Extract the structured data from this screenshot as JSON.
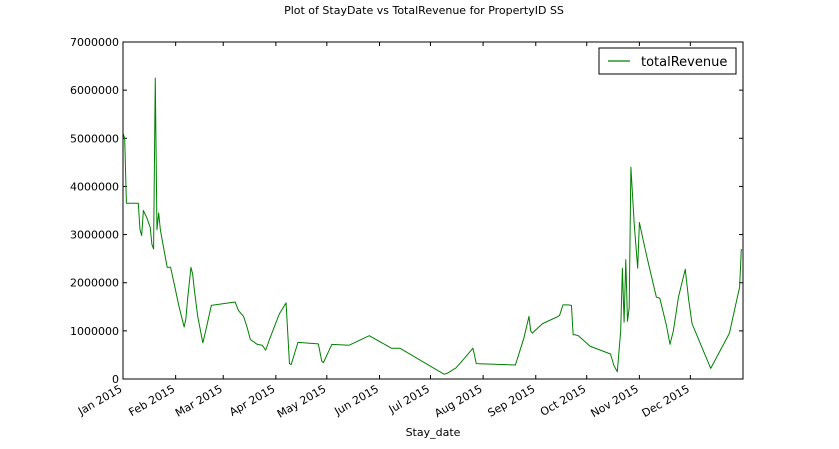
{
  "chart_data": {
    "type": "line",
    "title": "Plot of StayDate vs TotalRevenue for PropertyID SS",
    "xlabel": "Stay_date",
    "ylabel": "",
    "xlim": [
      "2015-01-01",
      "2015-12-31"
    ],
    "ylim": [
      0,
      7000000
    ],
    "grid": false,
    "legend_position": "top-right",
    "yticks": [
      {
        "value": 0,
        "label": "0"
      },
      {
        "value": 1000000,
        "label": "1000000"
      },
      {
        "value": 2000000,
        "label": "2000000"
      },
      {
        "value": 3000000,
        "label": "3000000"
      },
      {
        "value": 4000000,
        "label": "4000000"
      },
      {
        "value": 5000000,
        "label": "5000000"
      },
      {
        "value": 6000000,
        "label": "6000000"
      },
      {
        "value": 7000000,
        "label": "7000000"
      }
    ],
    "xticks": [
      {
        "value": "2015-01-01",
        "label": "Jan 2015"
      },
      {
        "value": "2015-02-01",
        "label": "Feb 2015"
      },
      {
        "value": "2015-03-01",
        "label": "Mar 2015"
      },
      {
        "value": "2015-04-01",
        "label": "Apr 2015"
      },
      {
        "value": "2015-05-01",
        "label": "May 2015"
      },
      {
        "value": "2015-06-01",
        "label": "Jun 2015"
      },
      {
        "value": "2015-07-01",
        "label": "Jul 2015"
      },
      {
        "value": "2015-08-01",
        "label": "Aug 2015"
      },
      {
        "value": "2015-09-01",
        "label": "Sep 2015"
      },
      {
        "value": "2015-10-01",
        "label": "Oct 2015"
      },
      {
        "value": "2015-11-01",
        "label": "Nov 2015"
      },
      {
        "value": "2015-12-01",
        "label": "Dec 2015"
      }
    ],
    "series": [
      {
        "name": "totalRevenue",
        "color": "#008000",
        "points": [
          [
            "2015-01-01",
            5100000
          ],
          [
            "2015-01-02",
            5000000
          ],
          [
            "2015-01-03",
            3650000
          ],
          [
            "2015-01-09",
            3650000
          ],
          [
            "2015-01-10",
            3650000
          ],
          [
            "2015-01-11",
            3100000
          ],
          [
            "2015-01-12",
            2980000
          ],
          [
            "2015-01-13",
            3500000
          ],
          [
            "2015-01-15",
            3350000
          ],
          [
            "2015-01-17",
            3150000
          ],
          [
            "2015-01-18",
            2800000
          ],
          [
            "2015-01-19",
            2700000
          ],
          [
            "2015-01-20",
            6250000
          ],
          [
            "2015-01-21",
            3100000
          ],
          [
            "2015-01-22",
            3450000
          ],
          [
            "2015-01-23",
            3100000
          ],
          [
            "2015-01-24",
            2900000
          ],
          [
            "2015-01-27",
            2320000
          ],
          [
            "2015-01-29",
            2320000
          ],
          [
            "2015-01-31",
            2000000
          ],
          [
            "2015-02-03",
            1500000
          ],
          [
            "2015-02-06",
            1080000
          ],
          [
            "2015-02-07",
            1250000
          ],
          [
            "2015-02-08",
            1650000
          ],
          [
            "2015-02-10",
            2320000
          ],
          [
            "2015-02-11",
            2180000
          ],
          [
            "2015-02-12",
            1850000
          ],
          [
            "2015-02-14",
            1300000
          ],
          [
            "2015-02-17",
            750000
          ],
          [
            "2015-02-19",
            1050000
          ],
          [
            "2015-02-22",
            1530000
          ],
          [
            "2015-03-08",
            1600000
          ],
          [
            "2015-03-10",
            1420000
          ],
          [
            "2015-03-13",
            1300000
          ],
          [
            "2015-03-15",
            1080000
          ],
          [
            "2015-03-17",
            820000
          ],
          [
            "2015-03-21",
            720000
          ],
          [
            "2015-03-24",
            700000
          ],
          [
            "2015-03-26",
            600000
          ],
          [
            "2015-03-28",
            800000
          ],
          [
            "2015-04-03",
            1350000
          ],
          [
            "2015-04-07",
            1580000
          ],
          [
            "2015-04-09",
            320000
          ],
          [
            "2015-04-10",
            300000
          ],
          [
            "2015-04-14",
            760000
          ],
          [
            "2015-04-26",
            730000
          ],
          [
            "2015-04-28",
            370000
          ],
          [
            "2015-04-29",
            340000
          ],
          [
            "2015-05-02",
            570000
          ],
          [
            "2015-05-04",
            720000
          ],
          [
            "2015-05-14",
            700000
          ],
          [
            "2015-05-26",
            900000
          ],
          [
            "2015-06-04",
            720000
          ],
          [
            "2015-06-08",
            640000
          ],
          [
            "2015-06-13",
            640000
          ],
          [
            "2015-07-09",
            100000
          ],
          [
            "2015-07-11",
            120000
          ],
          [
            "2015-07-16",
            230000
          ],
          [
            "2015-07-21",
            430000
          ],
          [
            "2015-07-26",
            640000
          ],
          [
            "2015-07-28",
            320000
          ],
          [
            "2015-08-20",
            290000
          ],
          [
            "2015-08-25",
            850000
          ],
          [
            "2015-08-28",
            1300000
          ],
          [
            "2015-08-29",
            1000000
          ],
          [
            "2015-08-30",
            950000
          ],
          [
            "2015-09-01",
            1020000
          ],
          [
            "2015-09-05",
            1150000
          ],
          [
            "2015-09-13",
            1280000
          ],
          [
            "2015-09-15",
            1320000
          ],
          [
            "2015-09-17",
            1540000
          ],
          [
            "2015-09-20",
            1540000
          ],
          [
            "2015-09-22",
            1530000
          ],
          [
            "2015-09-23",
            920000
          ],
          [
            "2015-09-24",
            920000
          ],
          [
            "2015-09-26",
            900000
          ],
          [
            "2015-10-03",
            680000
          ],
          [
            "2015-10-15",
            520000
          ],
          [
            "2015-10-17",
            280000
          ],
          [
            "2015-10-19",
            150000
          ],
          [
            "2015-10-21",
            1000000
          ],
          [
            "2015-10-22",
            2300000
          ],
          [
            "2015-10-23",
            1180000
          ],
          [
            "2015-10-24",
            2480000
          ],
          [
            "2015-10-25",
            1200000
          ],
          [
            "2015-10-26",
            1480000
          ],
          [
            "2015-10-27",
            4400000
          ],
          [
            "2015-10-28",
            3800000
          ],
          [
            "2015-10-29",
            3200000
          ],
          [
            "2015-10-31",
            2300000
          ],
          [
            "2015-11-01",
            3250000
          ],
          [
            "2015-11-05",
            2600000
          ],
          [
            "2015-11-09",
            2000000
          ],
          [
            "2015-11-11",
            1700000
          ],
          [
            "2015-11-13",
            1680000
          ],
          [
            "2015-11-17",
            1100000
          ],
          [
            "2015-11-19",
            720000
          ],
          [
            "2015-11-21",
            1000000
          ],
          [
            "2015-11-24",
            1700000
          ],
          [
            "2015-11-28",
            2280000
          ],
          [
            "2015-11-30",
            1650000
          ],
          [
            "2015-12-02",
            1150000
          ],
          [
            "2015-12-13",
            220000
          ],
          [
            "2015-12-24",
            950000
          ],
          [
            "2015-12-29",
            1750000
          ],
          [
            "2015-12-30",
            1900000
          ],
          [
            "2015-12-31",
            2700000
          ]
        ]
      }
    ]
  }
}
